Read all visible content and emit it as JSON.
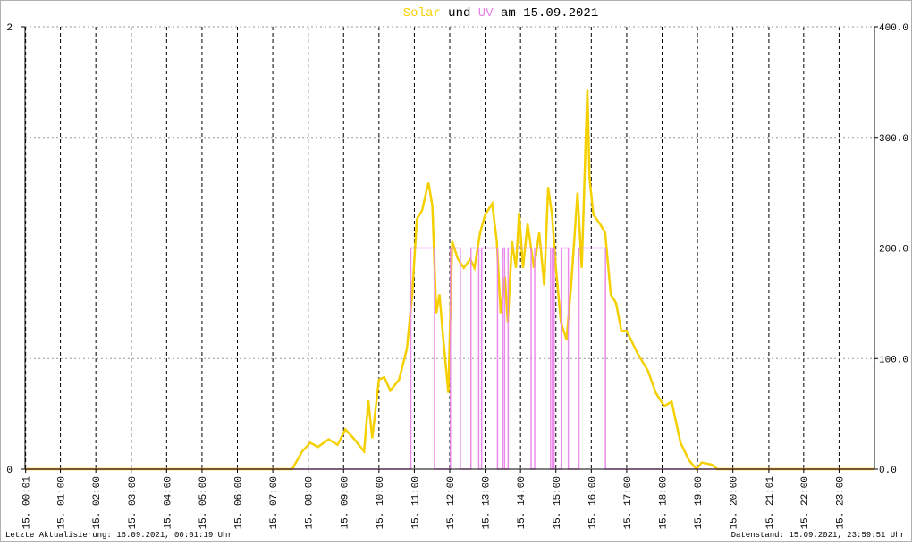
{
  "chart_data": {
    "type": "line",
    "title_connector": "und",
    "title_suffix": "am 15.09.2021",
    "footer_left": "Letzte Aktualisierung: 16.09.2021, 00:01:19 Uhr",
    "footer_right": "Datenstand: 15.09.2021, 23:59:51 Uhr",
    "xlim": [
      0,
      24
    ],
    "xticks": [
      {
        "value": 0.0167,
        "label": "15. 00:01"
      },
      {
        "value": 1,
        "label": "15. 01:00"
      },
      {
        "value": 2,
        "label": "15. 02:00"
      },
      {
        "value": 3,
        "label": "15. 03:00"
      },
      {
        "value": 4,
        "label": "15. 04:00"
      },
      {
        "value": 5,
        "label": "15. 05:00"
      },
      {
        "value": 6,
        "label": "15. 06:00"
      },
      {
        "value": 7,
        "label": "15. 07:00"
      },
      {
        "value": 8,
        "label": "15. 08:00"
      },
      {
        "value": 9,
        "label": "15. 09:00"
      },
      {
        "value": 10,
        "label": "15. 10:00"
      },
      {
        "value": 11,
        "label": "15. 11:00"
      },
      {
        "value": 12,
        "label": "15. 12:00"
      },
      {
        "value": 13,
        "label": "15. 13:00"
      },
      {
        "value": 14,
        "label": "15. 14:00"
      },
      {
        "value": 15,
        "label": "15. 15:00"
      },
      {
        "value": 16,
        "label": "15. 16:00"
      },
      {
        "value": 17,
        "label": "15. 17:00"
      },
      {
        "value": 18,
        "label": "15. 18:00"
      },
      {
        "value": 19,
        "label": "15. 19:00"
      },
      {
        "value": 20,
        "label": "15. 20:00"
      },
      {
        "value": 21.0167,
        "label": "15. 21:01"
      },
      {
        "value": 22,
        "label": "15. 22:00"
      },
      {
        "value": 23,
        "label": "15. 23:00"
      }
    ],
    "ylim": [
      0,
      2
    ],
    "yticks": [
      0,
      2
    ],
    "y2lim": [
      0,
      400
    ],
    "y2ticks": [
      {
        "value": 0,
        "label": "0.0"
      },
      {
        "value": 100,
        "label": "100.0"
      },
      {
        "value": 200,
        "label": "200.0"
      },
      {
        "value": 300,
        "label": "300.0"
      },
      {
        "value": 400,
        "label": "400.0"
      }
    ],
    "grid": true,
    "series": [
      {
        "name": "Solar",
        "color": "#f5d000",
        "axis": "y2",
        "x": [
          0,
          7.55,
          7.83,
          8.06,
          8.27,
          8.58,
          8.83,
          9.05,
          9.28,
          9.58,
          9.7,
          9.81,
          10.0,
          10.15,
          10.32,
          10.57,
          10.79,
          10.94,
          11.07,
          11.22,
          11.33,
          11.4,
          11.51,
          11.62,
          11.71,
          11.82,
          11.96,
          12.07,
          12.23,
          12.4,
          12.58,
          12.7,
          12.86,
          13.0,
          13.2,
          13.33,
          13.44,
          13.56,
          13.64,
          13.76,
          13.87,
          13.96,
          14.07,
          14.2,
          14.38,
          14.53,
          14.67,
          14.78,
          14.89,
          15.0,
          15.14,
          15.3,
          15.43,
          15.61,
          15.73,
          15.84,
          15.89,
          15.95,
          16.06,
          16.24,
          16.39,
          16.55,
          16.7,
          16.85,
          17.0,
          17.3,
          17.6,
          17.82,
          18.06,
          18.27,
          18.52,
          18.76,
          18.97,
          19.12,
          19.41,
          19.56,
          23.98
        ],
        "values": [
          0,
          0,
          16,
          24,
          20,
          27,
          22,
          36,
          28,
          16,
          62,
          28,
          81,
          83,
          71,
          81,
          109,
          158,
          226,
          234,
          250,
          259,
          238,
          141,
          158,
          117,
          69,
          206,
          190,
          182,
          190,
          182,
          214,
          230,
          240,
          206,
          141,
          174,
          133,
          206,
          182,
          232,
          182,
          222,
          182,
          214,
          166,
          255,
          230,
          182,
          133,
          117,
          166,
          250,
          182,
          295,
          343,
          263,
          230,
          222,
          214,
          158,
          150,
          125,
          125,
          105,
          89,
          69,
          57,
          61,
          24,
          8,
          0,
          6,
          4,
          0,
          0
        ]
      },
      {
        "name": "UV",
        "color": "#e880e8",
        "axis": "y",
        "x": [
          0,
          10.9,
          10.9,
          11.57,
          11.57,
          12.02,
          12.02,
          12.3,
          12.3,
          12.6,
          12.6,
          12.82,
          12.82,
          12.9,
          12.9,
          13.35,
          13.35,
          13.5,
          13.5,
          13.55,
          13.55,
          13.65,
          13.65,
          14.3,
          14.3,
          14.4,
          14.4,
          14.85,
          14.85,
          14.9,
          14.9,
          14.95,
          14.95,
          15.15,
          15.15,
          15.35,
          15.35,
          15.65,
          15.65,
          16.4,
          16.4,
          23.98
        ],
        "values": [
          0,
          0,
          1,
          1,
          0,
          0,
          1,
          1,
          0,
          0,
          1,
          1,
          0,
          0,
          1,
          1,
          0,
          0,
          1,
          1,
          0,
          0,
          1,
          1,
          0,
          0,
          1,
          1,
          0,
          0,
          1,
          1,
          0,
          0,
          1,
          1,
          0,
          0,
          1,
          1,
          0,
          0
        ]
      }
    ]
  }
}
